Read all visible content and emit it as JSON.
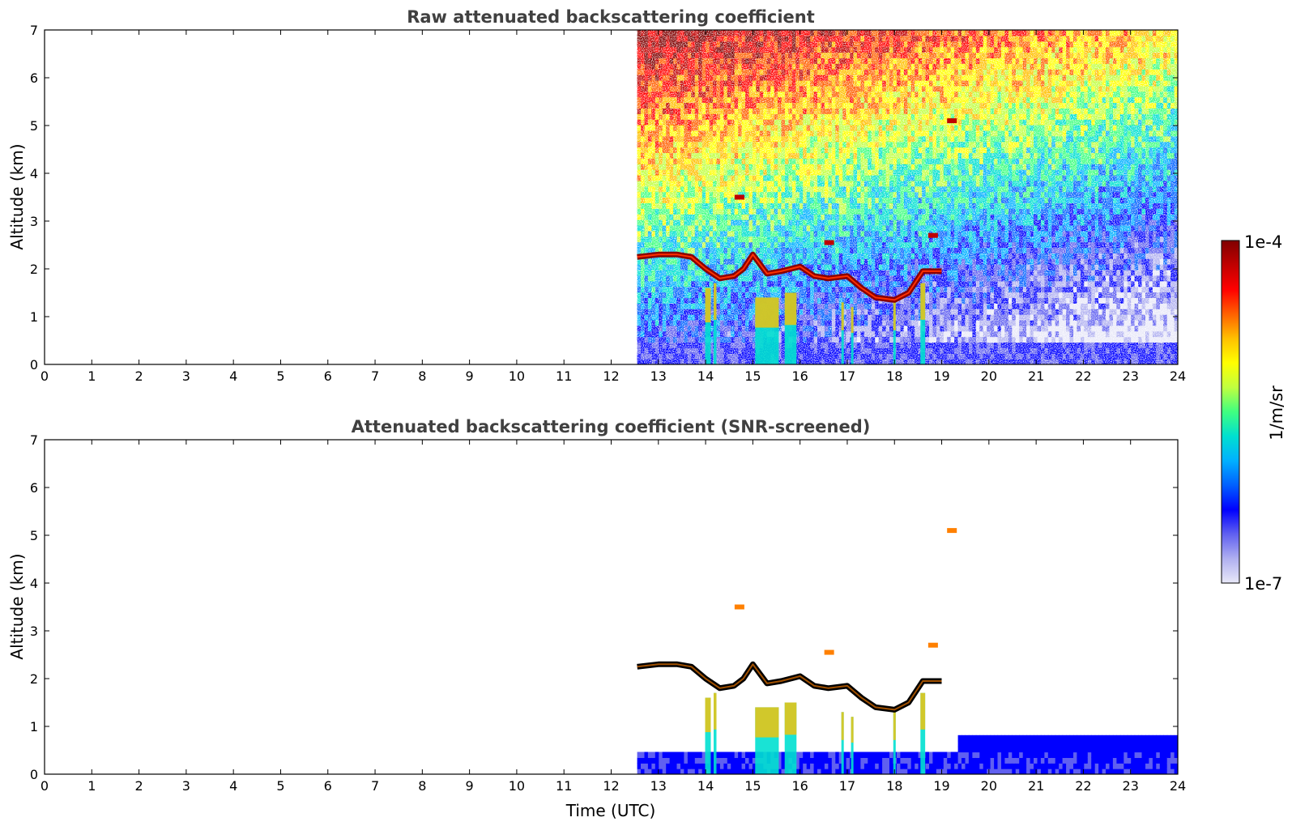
{
  "chart_data": [
    {
      "type": "heatmap",
      "title": "Raw attenuated backscattering coefficient",
      "xlabel": "",
      "ylabel": "Altitude (km)",
      "xlim": [
        0,
        24
      ],
      "ylim": [
        0,
        7
      ],
      "x_ticks": [
        "0",
        "1",
        "2",
        "3",
        "4",
        "5",
        "6",
        "7",
        "8",
        "9",
        "10",
        "11",
        "12",
        "13",
        "14",
        "15",
        "16",
        "17",
        "18",
        "19",
        "20",
        "21",
        "22",
        "23",
        "24"
      ],
      "y_ticks": [
        "0",
        "1",
        "2",
        "3",
        "4",
        "5",
        "6",
        "7"
      ],
      "data_start_time": 12.55,
      "data_end_time": 24,
      "screened": false
    },
    {
      "type": "heatmap",
      "title": "Attenuated backscattering coefficient (SNR-screened)",
      "xlabel": "Time (UTC)",
      "ylabel": "Altitude (km)",
      "xlim": [
        0,
        24
      ],
      "ylim": [
        0,
        7
      ],
      "x_ticks": [
        "0",
        "1",
        "2",
        "3",
        "4",
        "5",
        "6",
        "7",
        "8",
        "9",
        "10",
        "11",
        "12",
        "13",
        "14",
        "15",
        "16",
        "17",
        "18",
        "19",
        "20",
        "21",
        "22",
        "23",
        "24"
      ],
      "y_ticks": [
        "0",
        "1",
        "2",
        "3",
        "4",
        "5",
        "6",
        "7"
      ],
      "data_start_time": 12.55,
      "data_end_time": 24,
      "screened": true
    }
  ],
  "colorbar": {
    "label": "1/m/sr",
    "max_label": "1e-4",
    "min_label": "1e-7",
    "scale": "log",
    "colormap": [
      "#e8e8f8",
      "#b0b0f0",
      "#6060f0",
      "#0000ff",
      "#0060ff",
      "#00b0ff",
      "#00e0d0",
      "#40ff80",
      "#c0ff40",
      "#ffff00",
      "#ffc000",
      "#ff6000",
      "#ff0000",
      "#c00000",
      "#800000"
    ]
  },
  "features": {
    "cloud_layer_km": [
      [
        12.55,
        2.25
      ],
      [
        13.0,
        2.3
      ],
      [
        13.4,
        2.3
      ],
      [
        13.7,
        2.25
      ],
      [
        14.0,
        2.0
      ],
      [
        14.3,
        1.8
      ],
      [
        14.6,
        1.85
      ],
      [
        14.8,
        2.0
      ],
      [
        15.0,
        2.3
      ],
      [
        15.3,
        1.9
      ],
      [
        15.6,
        1.95
      ],
      [
        16.0,
        2.05
      ],
      [
        16.3,
        1.85
      ],
      [
        16.6,
        1.8
      ],
      [
        17.0,
        1.85
      ],
      [
        17.3,
        1.6
      ],
      [
        17.6,
        1.4
      ],
      [
        18.0,
        1.35
      ],
      [
        18.3,
        1.5
      ],
      [
        18.6,
        1.95
      ],
      [
        19.0,
        1.95
      ]
    ],
    "upper_patches": [
      [
        14.7,
        3.5
      ],
      [
        18.8,
        2.7
      ],
      [
        19.2,
        5.1
      ],
      [
        16.6,
        2.55
      ]
    ]
  }
}
